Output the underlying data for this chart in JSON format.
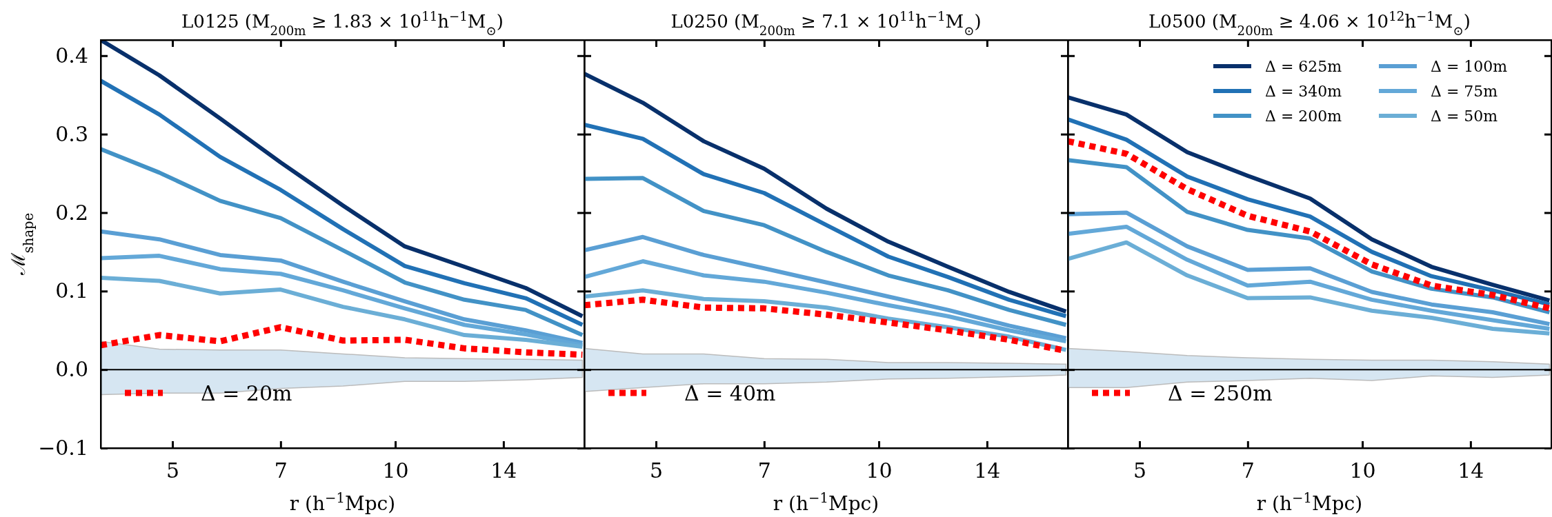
{
  "chart_data": [
    {
      "type": "line",
      "title": "L0125 (M$_{200m}$ ≥ 1.83 × 10$^{11}$h$^{−1}$M$_{⊙}$)",
      "xlabel": "r (h$^{−1}$Mpc)",
      "ylabel": "ℳ$_{shape}$",
      "log": "x",
      "xlim": [
        4,
        18
      ],
      "xticks": [
        5,
        7,
        10,
        14
      ],
      "ylim": [
        -0.1,
        0.42
      ],
      "yticks": [
        -0.1,
        {
          "value": 0,
          "label": "0.0"
        },
        0.1,
        0.2,
        0.3,
        0.4
      ],
      "legend": "bottom left",
      "x": [
        4.0,
        4.8,
        5.8,
        7.0,
        8.5,
        10.3,
        12.4,
        15.0,
        17.9
      ],
      "ref_lines": [
        {
          "axis": "y",
          "value": 0
        }
      ],
      "series": [
        {
          "type": "area",
          "color": "#d6e6f2",
          "values": [
            null,
            null,
            null,
            null,
            null,
            null,
            null,
            null,
            null
          ],
          "lower": [
            -0.032,
            -0.03,
            -0.03,
            -0.024,
            -0.021,
            -0.015,
            -0.015,
            -0.013,
            -0.01
          ],
          "upper": [
            0.036,
            0.026,
            0.025,
            0.025,
            0.02,
            0.015,
            0.014,
            0.013,
            0.012
          ]
        },
        {
          "color": "#08306b",
          "values": [
            0.42,
            0.375,
            0.32,
            0.264,
            0.209,
            0.157,
            0.131,
            0.104,
            0.068
          ]
        },
        {
          "color": "#2171b5",
          "values": [
            0.368,
            0.325,
            0.271,
            0.229,
            0.179,
            0.132,
            0.11,
            0.091,
            0.057
          ]
        },
        {
          "color": "#4292c6",
          "values": [
            0.281,
            0.251,
            0.215,
            0.193,
            0.152,
            0.111,
            0.089,
            0.076,
            0.044
          ]
        },
        {
          "color": "#5a9fd4",
          "values": [
            0.176,
            0.166,
            0.146,
            0.139,
            0.112,
            0.087,
            0.064,
            0.05,
            0.034
          ]
        },
        {
          "color": "#63a8d8",
          "values": [
            0.142,
            0.145,
            0.128,
            0.122,
            0.101,
            0.078,
            0.057,
            0.045,
            0.031
          ]
        },
        {
          "color": "#6baed6",
          "values": [
            0.117,
            0.113,
            0.097,
            0.102,
            0.08,
            0.064,
            0.044,
            0.038,
            0.029
          ]
        },
        {
          "name": "Δ = 20m",
          "color": "#ff0000",
          "line_style": "dotted",
          "values": [
            0.031,
            0.044,
            0.036,
            0.054,
            0.037,
            0.038,
            0.027,
            0.022,
            0.019
          ]
        }
      ]
    },
    {
      "type": "line",
      "title": "L0250 (M$_{200m}$ ≥ 7.1 × 10$^{11}$h$^{−1}$M$_{⊙}$)",
      "xlabel": "r (h$^{−1}$Mpc)",
      "log": "x",
      "xlim": [
        4,
        18
      ],
      "xticks": [
        5,
        7,
        10,
        14
      ],
      "ylim": [
        -0.1,
        0.42
      ],
      "yticks": [
        -0.1,
        0.0,
        0.1,
        0.2,
        0.3,
        0.4
      ],
      "tick_labels": "x",
      "legend": "bottom left",
      "x": [
        4.0,
        4.8,
        5.8,
        7.0,
        8.5,
        10.3,
        12.4,
        15.0,
        17.9
      ],
      "ref_lines": [
        {
          "axis": "y",
          "value": 0
        }
      ],
      "series": [
        {
          "type": "area",
          "color": "#d6e6f2",
          "values": [
            null,
            null,
            null,
            null,
            null,
            null,
            null,
            null,
            null
          ],
          "lower": [
            -0.028,
            -0.023,
            -0.018,
            -0.018,
            -0.016,
            -0.012,
            -0.011,
            -0.009,
            -0.007
          ],
          "upper": [
            0.027,
            0.02,
            0.02,
            0.014,
            0.013,
            0.009,
            0.009,
            0.008,
            0.007
          ]
        },
        {
          "color": "#08306b",
          "values": [
            0.377,
            0.34,
            0.291,
            0.256,
            0.205,
            0.163,
            0.131,
            0.099,
            0.074
          ]
        },
        {
          "color": "#2171b5",
          "values": [
            0.312,
            0.294,
            0.249,
            0.225,
            0.184,
            0.144,
            0.118,
            0.089,
            0.068
          ]
        },
        {
          "color": "#4292c6",
          "values": [
            0.243,
            0.244,
            0.202,
            0.184,
            0.15,
            0.12,
            0.101,
            0.076,
            0.057
          ]
        },
        {
          "color": "#5a9fd4",
          "values": [
            0.152,
            0.169,
            0.146,
            0.129,
            0.111,
            0.093,
            0.076,
            0.056,
            0.04
          ]
        },
        {
          "color": "#63a8d8",
          "values": [
            0.118,
            0.138,
            0.12,
            0.112,
            0.098,
            0.082,
            0.068,
            0.05,
            0.036
          ]
        },
        {
          "color": "#6baed6",
          "values": [
            0.093,
            0.101,
            0.09,
            0.087,
            0.079,
            0.065,
            0.054,
            0.042,
            0.025
          ]
        },
        {
          "name": "Δ = 40m",
          "color": "#ff0000",
          "line_style": "dotted",
          "values": [
            0.082,
            0.089,
            0.079,
            0.078,
            0.07,
            0.06,
            0.05,
            0.038,
            0.024
          ]
        }
      ]
    },
    {
      "type": "line",
      "title": "L0500 (M$_{200m}$ ≥ 4.06 × 10$^{12}$h$^{−1}$M$_{⊙}$)",
      "xlabel": "r (h$^{−1}$Mpc)",
      "log": "x",
      "xlim": [
        4,
        18
      ],
      "xticks": [
        5,
        7,
        10,
        14
      ],
      "ylim": [
        -0.1,
        0.42
      ],
      "yticks": [
        -0.1,
        0.0,
        0.1,
        0.2,
        0.3,
        0.4
      ],
      "tick_labels": "x",
      "legend": "top right",
      "x": [
        4.0,
        4.8,
        5.8,
        7.0,
        8.5,
        10.3,
        12.4,
        15.0,
        17.9
      ],
      "ref_lines": [
        {
          "axis": "y",
          "value": 0
        }
      ],
      "series": [
        {
          "type": "area",
          "color": "#d6e6f2",
          "values": [
            null,
            null,
            null,
            null,
            null,
            null,
            null,
            null,
            null
          ],
          "lower": [
            -0.023,
            -0.023,
            -0.016,
            -0.014,
            -0.011,
            -0.014,
            -0.008,
            -0.01,
            -0.007
          ],
          "upper": [
            0.027,
            0.023,
            0.018,
            0.015,
            0.013,
            0.012,
            0.012,
            0.01,
            0.007
          ]
        },
        {
          "name": "Δ = 625m",
          "color": "#08306b",
          "values": [
            0.347,
            0.325,
            0.277,
            0.247,
            0.218,
            0.166,
            0.131,
            0.108,
            0.088
          ]
        },
        {
          "name": "Δ = 340m",
          "color": "#2171b5",
          "values": [
            0.319,
            0.293,
            0.246,
            0.217,
            0.195,
            0.15,
            0.119,
            0.101,
            0.083
          ]
        },
        {
          "name": "Δ = 200m",
          "color": "#4292c6",
          "values": [
            0.267,
            0.258,
            0.201,
            0.178,
            0.167,
            0.125,
            0.103,
            0.092,
            0.073
          ]
        },
        {
          "name": "Δ = 100m",
          "color": "#5a9fd4",
          "values": [
            0.198,
            0.2,
            0.157,
            0.127,
            0.129,
            0.099,
            0.083,
            0.073,
            0.058
          ]
        },
        {
          "name": "Δ = 75m",
          "color": "#63a8d8",
          "values": [
            0.173,
            0.182,
            0.14,
            0.107,
            0.112,
            0.089,
            0.075,
            0.063,
            0.052
          ]
        },
        {
          "name": "Δ = 50m",
          "color": "#6baed6",
          "values": [
            0.141,
            0.162,
            0.12,
            0.091,
            0.092,
            0.075,
            0.066,
            0.052,
            0.046
          ]
        },
        {
          "name": "Δ = 250m",
          "color": "#ff0000",
          "line_style": "dotted",
          "values": [
            0.291,
            0.275,
            0.23,
            0.196,
            0.176,
            0.134,
            0.107,
            0.095,
            0.078
          ]
        }
      ]
    }
  ]
}
